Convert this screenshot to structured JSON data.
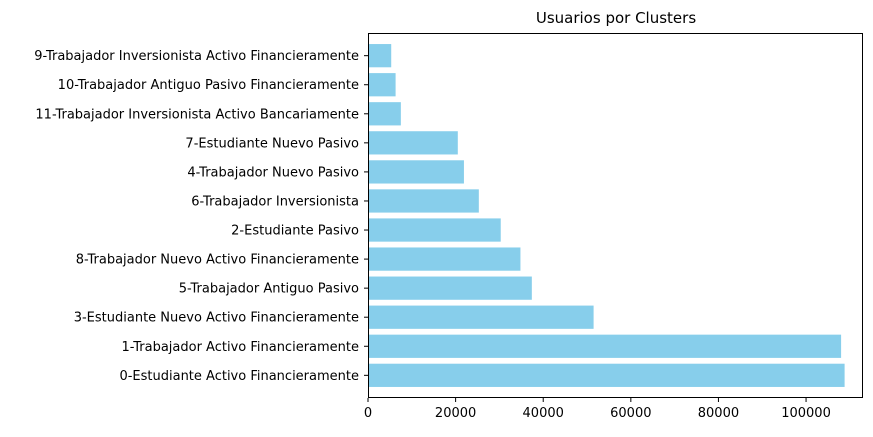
{
  "chart_data": {
    "type": "bar",
    "orientation": "horizontal",
    "title": "Usuarios por Clusters",
    "xlabel": "",
    "ylabel": "",
    "xlim": [
      0,
      113000
    ],
    "x_ticks": [
      0,
      20000,
      40000,
      60000,
      80000,
      100000
    ],
    "x_tick_labels": [
      "0",
      "20000",
      "40000",
      "60000",
      "80000",
      "100000"
    ],
    "grid": false,
    "bar_color": "#87ceeb",
    "categories": [
      "0-Estudiante Activo Financieramente",
      "1-Trabajador Activo Financieramente",
      "3-Estudiante Nuevo Activo Financieramente",
      "5-Trabajador Antiguo Pasivo",
      "8-Trabajador Nuevo Activo Financieramente",
      "2-Estudiante Pasivo",
      "6-Trabajador Inversionista",
      "4-Trabajador Nuevo Pasivo",
      "7-Estudiante Nuevo Pasivo",
      "11-Trabajador Inversionista Activo Bancariamente",
      "10-Trabajador Antiguo Pasivo Financieramente",
      "9-Trabajador Inversionista Activo Financieramente"
    ],
    "values": [
      108800,
      108000,
      51500,
      37400,
      34800,
      30300,
      25300,
      21900,
      20500,
      7500,
      6300,
      5300
    ]
  }
}
